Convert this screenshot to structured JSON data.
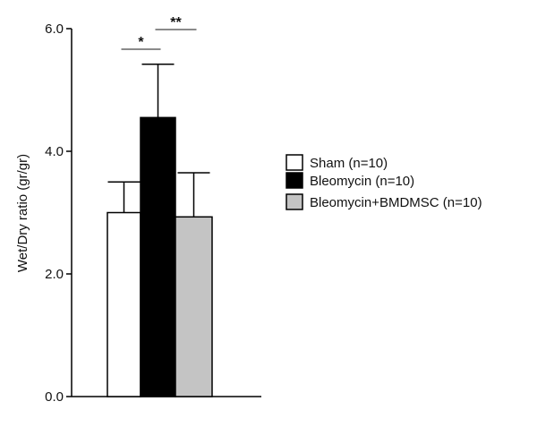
{
  "chart_data": {
    "type": "bar",
    "title": "",
    "xlabel": "",
    "ylabel": "Wet/Dry ratio (gr/gr)",
    "ylim": [
      0,
      6.0
    ],
    "yticks": [
      "0.0",
      "2.0",
      "4.0",
      "6.0"
    ],
    "grid": false,
    "legend_position": "right",
    "series": [
      {
        "name": "Sham (n=10)",
        "value": 3.0,
        "error": 0.5,
        "color": "#ffffff"
      },
      {
        "name": "Bleomycin (n=10)",
        "value": 4.55,
        "error": 0.87,
        "color": "#000000"
      },
      {
        "name": "Bleomycin+BMDMSC (n=10)",
        "value": 2.93,
        "error": 0.72,
        "color": "#c4c4c4"
      }
    ],
    "significance": [
      {
        "from": 0,
        "to": 1,
        "label": "*"
      },
      {
        "from": 1,
        "to": 2,
        "label": "**"
      }
    ]
  }
}
